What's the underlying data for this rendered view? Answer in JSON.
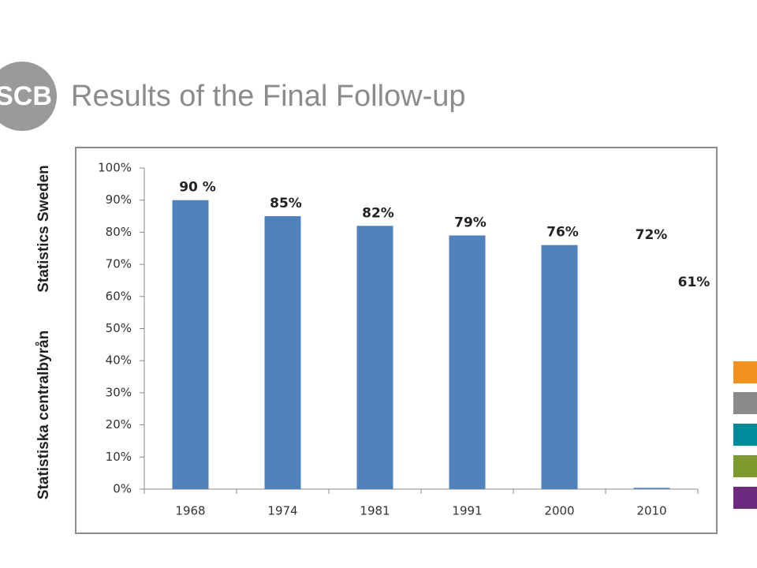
{
  "slide": {
    "logo": "SCB",
    "side_texts": [
      "Statistics Sweden",
      "Statistiska centralbyrån"
    ]
  },
  "chart_data": {
    "type": "bar",
    "title": "Results of the Final Follow-up",
    "categories": [
      "1968",
      "1974",
      "1981",
      "1991",
      "2000",
      "2010"
    ],
    "values": [
      90,
      85,
      82,
      79,
      76,
      0.4
    ],
    "value_labels": [
      "90 %",
      "85%",
      "82%",
      "79%",
      "76%",
      null
    ],
    "annotations": [
      "72%",
      "61%"
    ],
    "color": "#4f81bd",
    "ylim": [
      0,
      100
    ],
    "yticks": [
      {
        "value": 0,
        "label": "0%"
      },
      {
        "value": 10,
        "label": "10%"
      },
      {
        "value": 20,
        "label": "20%"
      },
      {
        "value": 30,
        "label": "30%"
      },
      {
        "value": 40,
        "label": "40%"
      },
      {
        "value": 50,
        "label": "50%"
      },
      {
        "value": 60,
        "label": "60%"
      },
      {
        "value": 70,
        "label": "70%"
      },
      {
        "value": 80,
        "label": "80%"
      },
      {
        "value": 90,
        "label": "90%"
      },
      {
        "value": 100,
        "label": "100%"
      }
    ],
    "grid": false
  }
}
